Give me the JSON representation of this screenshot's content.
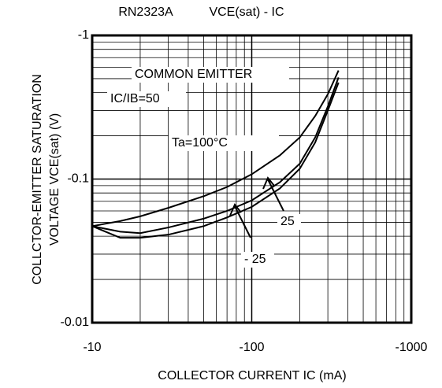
{
  "chart_data": {
    "type": "line",
    "title": "RN2323A",
    "subtitle": "VCE(sat) - IC",
    "ylabel": [
      "COLLCTOR-EMITTER SATURATION",
      "VOLTAGE VCE(sat) (V)"
    ],
    "xlabel": "COLLECTOR CURRENT IC (mA)",
    "annotations": [
      "COMMON EMITTER",
      "IC/IB=50"
    ],
    "x": [
      -10,
      -15,
      -20,
      -30,
      -50,
      -70,
      -100,
      -150,
      -200,
      -250,
      -300,
      -350
    ],
    "series": [
      {
        "name": "Ta=100°C",
        "color": "#000000",
        "values": [
          -0.047,
          -0.051,
          -0.055,
          -0.063,
          -0.076,
          -0.088,
          -0.108,
          -0.146,
          -0.195,
          -0.275,
          -0.39,
          -0.57
        ]
      },
      {
        "name": "25",
        "color": "#000000",
        "values": [
          -0.047,
          -0.043,
          -0.042,
          -0.046,
          -0.053,
          -0.06,
          -0.071,
          -0.095,
          -0.128,
          -0.195,
          -0.32,
          -0.51
        ]
      },
      {
        "name": "- 25",
        "color": "#000000",
        "values": [
          -0.047,
          -0.039,
          -0.039,
          -0.041,
          -0.047,
          -0.054,
          -0.064,
          -0.086,
          -0.118,
          -0.18,
          -0.3,
          -0.47
        ]
      }
    ],
    "xlim": [
      -10,
      -1000
    ],
    "xticks": [
      -10,
      -100,
      -1000
    ],
    "ylim": [
      -0.01,
      -1
    ],
    "yticks": [
      -0.01,
      -0.1,
      -1
    ],
    "xscale": "log",
    "yscale": "log",
    "grid": true
  }
}
